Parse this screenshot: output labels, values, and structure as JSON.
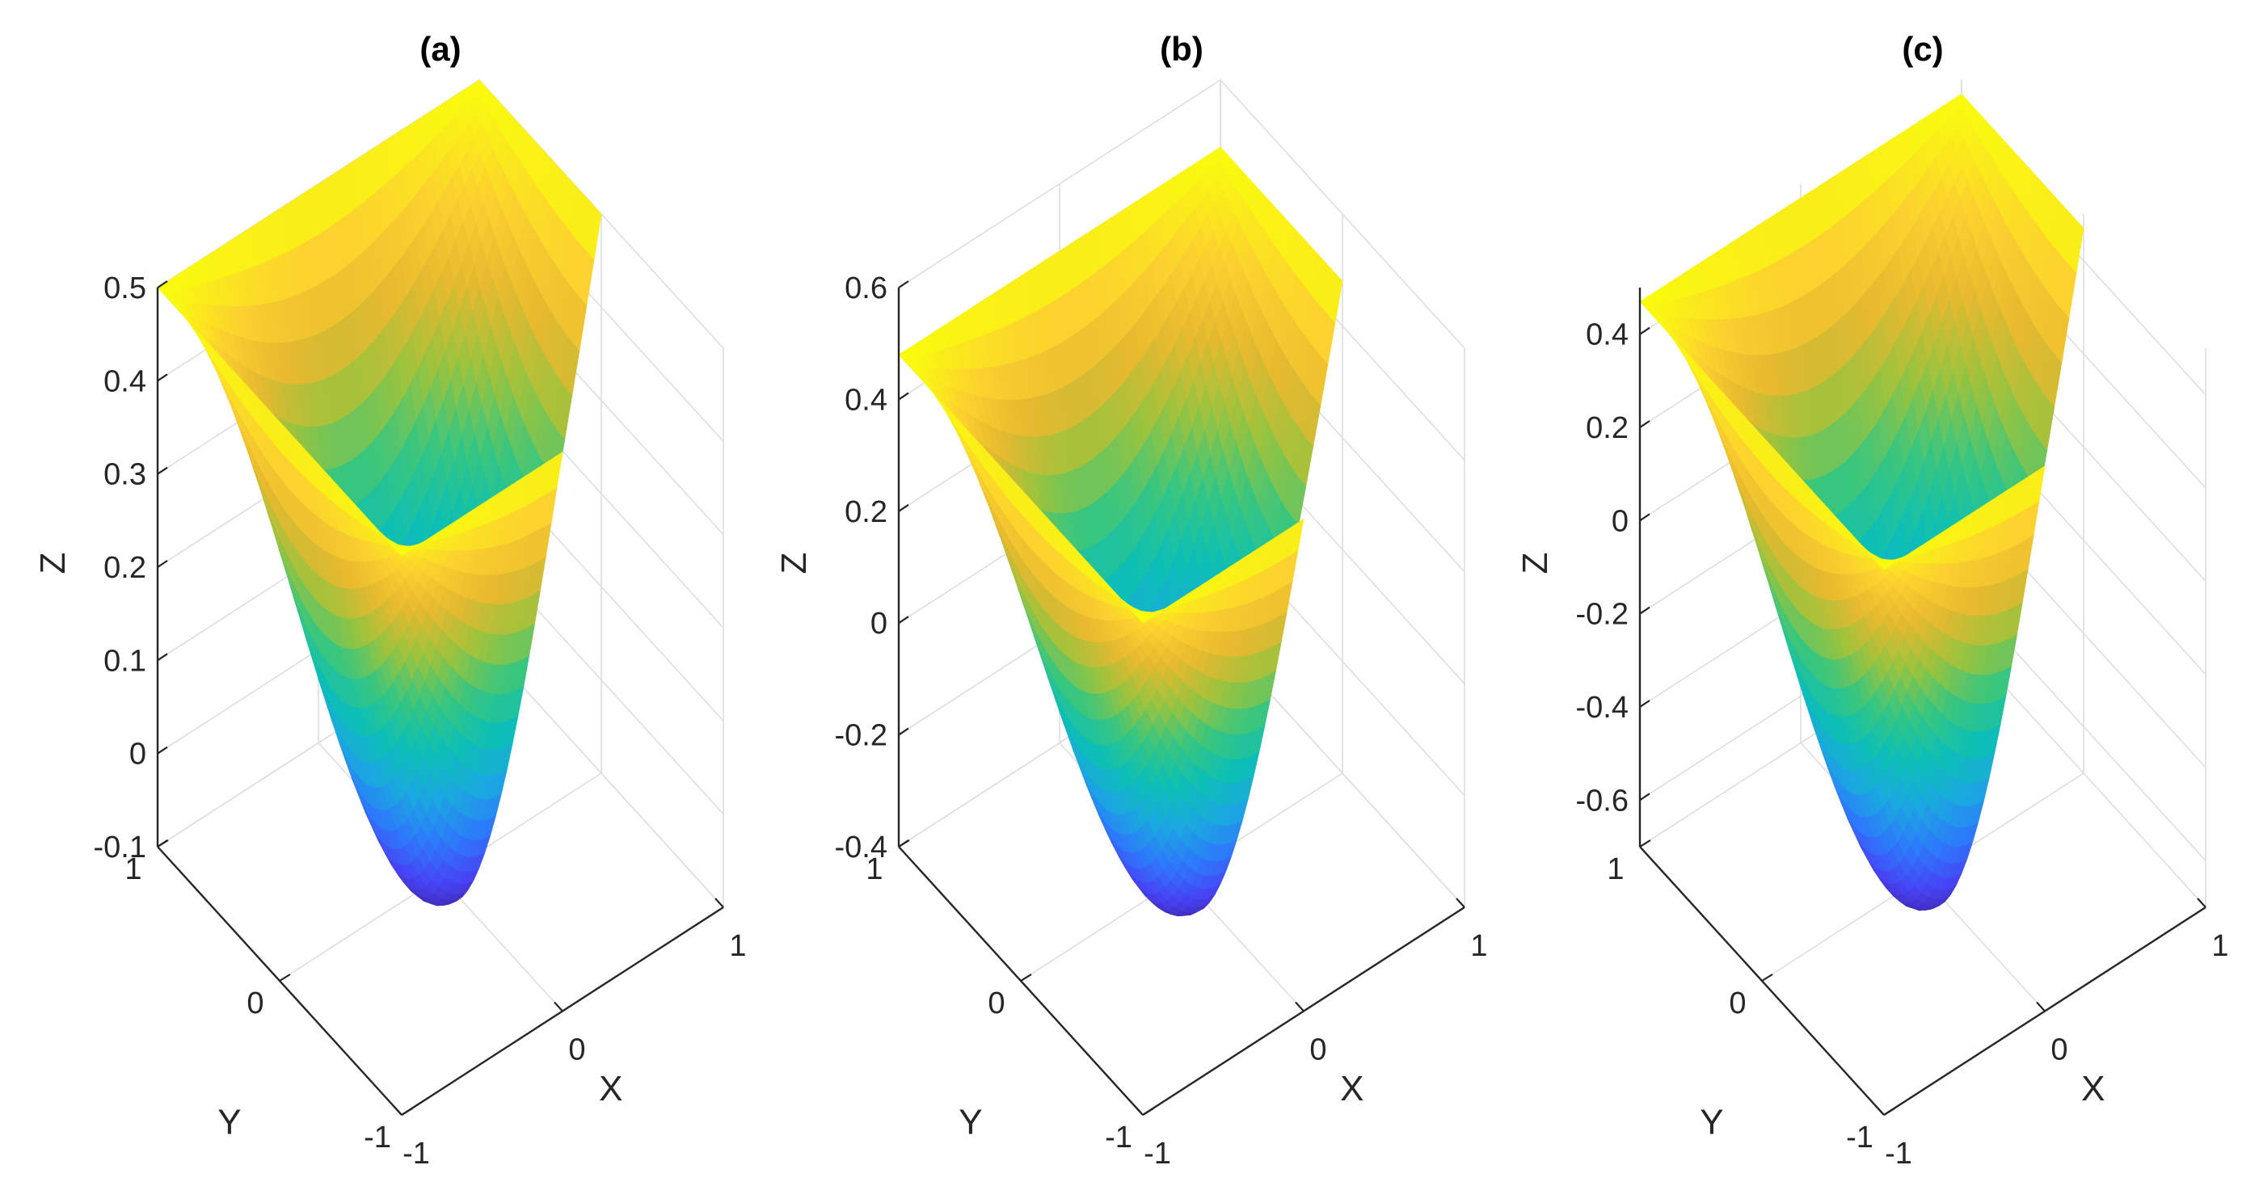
{
  "chart_data": [
    {
      "type": "surface3d",
      "title": "(a)",
      "xlabel": "X",
      "ylabel": "Y",
      "zlabel": "Z",
      "xlim": [
        -1,
        1
      ],
      "ylim": [
        -1,
        1
      ],
      "zlim": [
        -0.1,
        0.5
      ],
      "xticks": [
        "-1",
        "0",
        "1"
      ],
      "yticks": [
        "-1",
        "0",
        "1"
      ],
      "zticks": [
        "-0.1",
        "0",
        "0.1",
        "0.2",
        "0.3",
        "0.4",
        "0.5"
      ],
      "domain": "L-shaped region [-1,1]x[-1,1] with quadrant x>0,y<0 removed",
      "z_min": -0.12,
      "z_boundary": 0.5,
      "colormap": [
        "#3e26a8",
        "#4743f5",
        "#2d79fb",
        "#1ba8e0",
        "#0cbfb5",
        "#38c67f",
        "#9bc33d",
        "#e6b92f",
        "#fcd12f",
        "#f9fb0e"
      ]
    },
    {
      "type": "surface3d",
      "title": "(b)",
      "xlabel": "X",
      "ylabel": "Y",
      "zlabel": "Z",
      "xlim": [
        -1,
        1
      ],
      "ylim": [
        -1,
        1
      ],
      "zlim": [
        -0.4,
        0.6
      ],
      "xticks": [
        "-1",
        "0",
        "1"
      ],
      "yticks": [
        "-1",
        "0",
        "1"
      ],
      "zticks": [
        "-0.4",
        "-0.2",
        "0",
        "0.2",
        "0.4",
        "0.6"
      ],
      "domain": "L-shaped region [-1,1]x[-1,1] with quadrant x>0,y<0 removed",
      "z_min": -0.45,
      "z_boundary": 0.48,
      "colormap": [
        "#3e26a8",
        "#4743f5",
        "#2d79fb",
        "#1ba8e0",
        "#0cbfb5",
        "#38c67f",
        "#9bc33d",
        "#e6b92f",
        "#fcd12f",
        "#f9fb0e"
      ]
    },
    {
      "type": "surface3d",
      "title": "(c)",
      "xlabel": "X",
      "ylabel": "Y",
      "zlabel": "Z",
      "xlim": [
        -1,
        1
      ],
      "ylim": [
        -1,
        1
      ],
      "zlim": [
        -0.7,
        0.5
      ],
      "xticks": [
        "-1",
        "0",
        "1"
      ],
      "yticks": [
        "-1",
        "0",
        "1"
      ],
      "zticks": [
        "-0.6",
        "-0.4",
        "-0.2",
        "0",
        "0.2",
        "0.4"
      ],
      "domain": "L-shaped region [-1,1]x[-1,1] with quadrant x>0,y<0 removed",
      "z_min": -0.75,
      "z_boundary": 0.47,
      "colormap": [
        "#3e26a8",
        "#4743f5",
        "#2d79fb",
        "#1ba8e0",
        "#0cbfb5",
        "#38c67f",
        "#9bc33d",
        "#e6b92f",
        "#fcd12f",
        "#f9fb0e"
      ]
    }
  ]
}
